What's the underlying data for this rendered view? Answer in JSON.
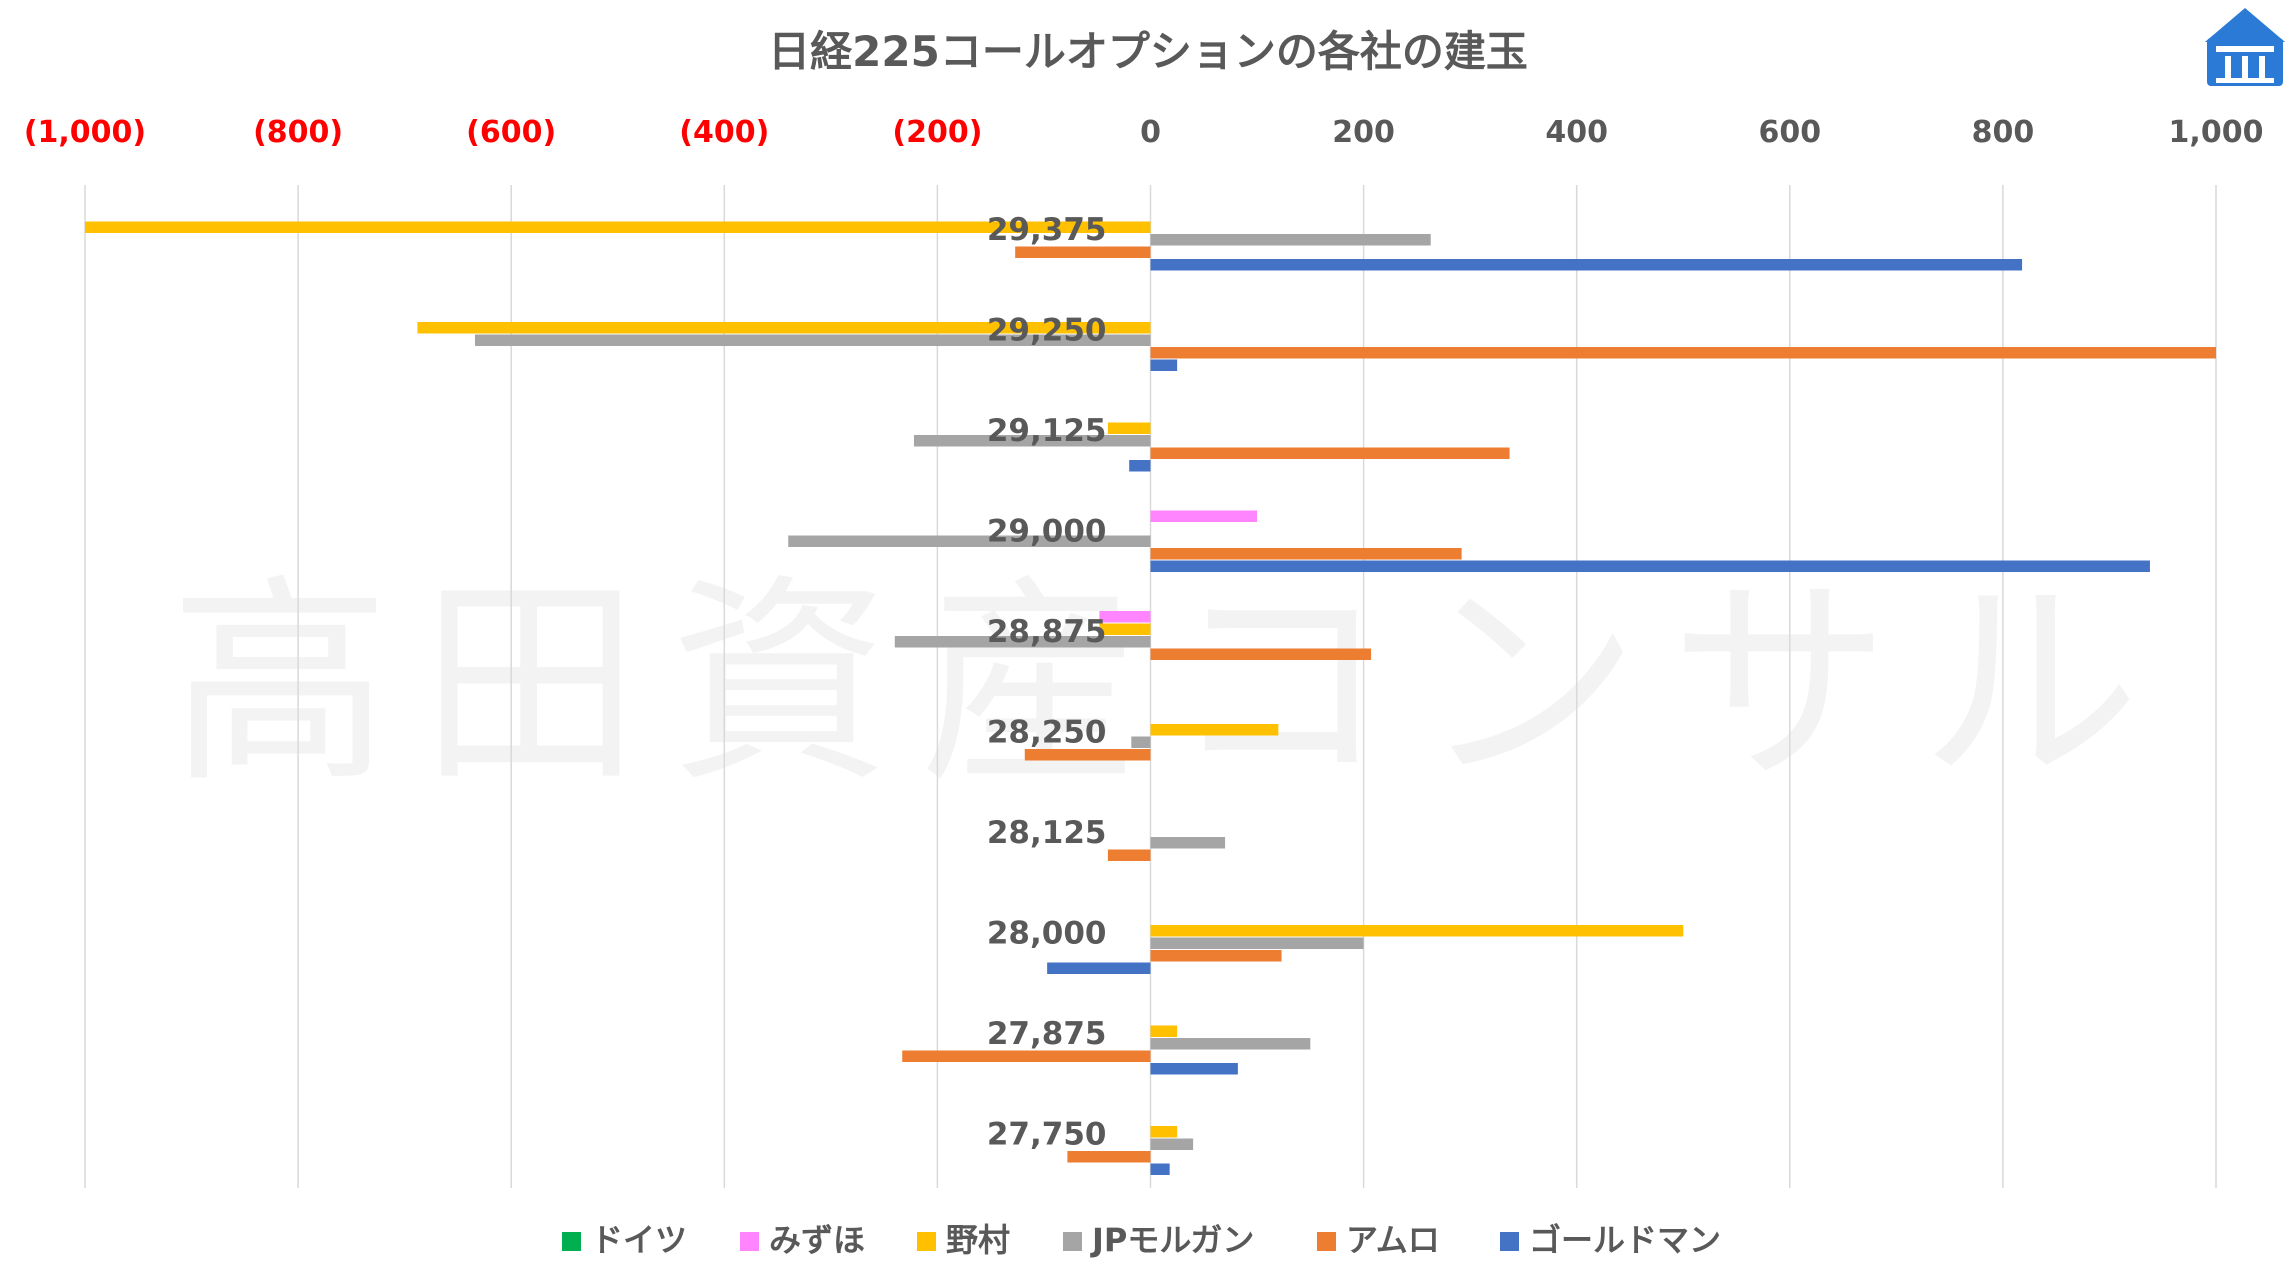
{
  "chart_data": {
    "type": "bar",
    "orientation": "horizontal",
    "title": "日経225コールオプションの各社の建玉",
    "watermark": "高田資産コンサル",
    "logo": "logo-icon",
    "xlim": [
      -1000,
      1000
    ],
    "x_ticks": [
      -1000,
      -800,
      -600,
      -400,
      -200,
      0,
      200,
      400,
      600,
      800,
      1000
    ],
    "x_tick_labels": [
      "(1,000)",
      "(800)",
      "(600)",
      "(400)",
      "(200)",
      "0",
      "200",
      "400",
      "600",
      "800",
      "1,000"
    ],
    "negative_tick_color": "#ff0000",
    "positive_tick_color": "#595959",
    "grid": true,
    "legend_position": "bottom",
    "categories": [
      "29,375",
      "29,250",
      "29,125",
      "29,000",
      "28,875",
      "28,250",
      "28,125",
      "28,000",
      "27,875",
      "27,750"
    ],
    "series": [
      {
        "name": "ドイツ",
        "color": "#00b050",
        "values": [
          0,
          0,
          0,
          0,
          0,
          0,
          0,
          0,
          0,
          0
        ]
      },
      {
        "name": "みずほ",
        "color": "#ff85ff",
        "values": [
          0,
          0,
          0,
          100,
          -48,
          0,
          0,
          0,
          0,
          0
        ]
      },
      {
        "name": "野村",
        "color": "#ffc000",
        "values": [
          -1000,
          -688,
          -40,
          0,
          -48,
          120,
          0,
          500,
          25,
          25
        ]
      },
      {
        "name": "JPモルガン",
        "color": "#a5a5a5",
        "values": [
          263,
          -634,
          -222,
          -340,
          -240,
          -18,
          70,
          200,
          150,
          40
        ]
      },
      {
        "name": "アムロ",
        "color": "#ed7d31",
        "values": [
          -127,
          1000,
          337,
          292,
          207,
          -118,
          -40,
          123,
          -233,
          -78
        ]
      },
      {
        "name": "ゴールドマン",
        "color": "#4472c4",
        "values": [
          818,
          25,
          -20,
          938,
          0,
          0,
          0,
          -97,
          82,
          18
        ]
      }
    ]
  }
}
